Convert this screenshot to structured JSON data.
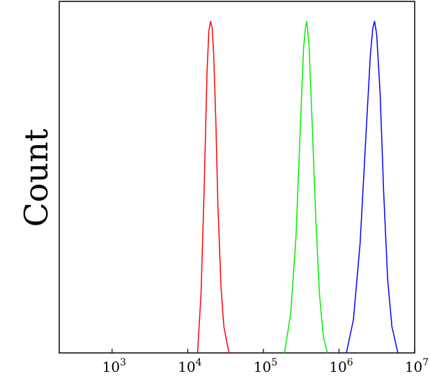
{
  "chart_data": {
    "type": "line",
    "title": "",
    "xlabel": "",
    "ylabel": "Count",
    "x_scale": "log",
    "xlim": [
      200,
      10000000
    ],
    "ylim": [
      0,
      1.06
    ],
    "grid": false,
    "legend": "none",
    "x_ticks": [
      {
        "value": 1000,
        "base": "10",
        "exp": "3"
      },
      {
        "value": 10000,
        "base": "10",
        "exp": "4"
      },
      {
        "value": 100000,
        "base": "10",
        "exp": "5"
      },
      {
        "value": 1000000,
        "base": "10",
        "exp": "6"
      },
      {
        "value": 10000000,
        "base": "10",
        "exp": "7"
      }
    ],
    "series": [
      {
        "color": "#ff0000",
        "x": [
          13500,
          15000,
          16500,
          18000,
          19000,
          20000,
          21000,
          22000,
          23500,
          25000,
          27500,
          30000,
          35000
        ],
        "y": [
          0.0,
          0.18,
          0.5,
          0.85,
          0.97,
          1.0,
          0.98,
          0.9,
          0.7,
          0.45,
          0.2,
          0.08,
          0.0
        ]
      },
      {
        "color": "#00ee00",
        "x": [
          190000,
          230000,
          270000,
          310000,
          340000,
          360000,
          375000,
          400000,
          440000,
          490000,
          550000,
          620000,
          700000
        ],
        "y": [
          0.0,
          0.12,
          0.35,
          0.7,
          0.92,
          0.98,
          1.0,
          0.93,
          0.7,
          0.42,
          0.18,
          0.05,
          0.0
        ]
      },
      {
        "color": "#0000ff",
        "x": [
          1250000,
          1550000,
          1900000,
          2300000,
          2600000,
          2800000,
          2950000,
          3150000,
          3500000,
          3900000,
          4400000,
          5000000,
          6000000
        ],
        "y": [
          0.0,
          0.1,
          0.33,
          0.68,
          0.9,
          0.98,
          1.0,
          0.96,
          0.78,
          0.48,
          0.22,
          0.08,
          0.0
        ]
      }
    ]
  }
}
